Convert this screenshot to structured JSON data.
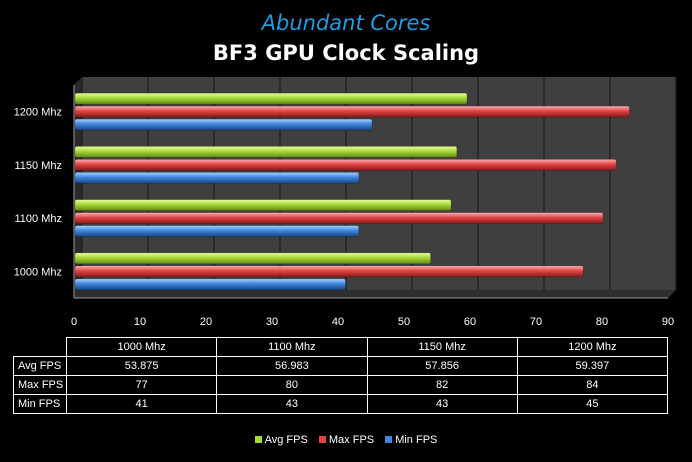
{
  "chart_data": {
    "type": "bar",
    "orientation": "horizontal",
    "subtitle": "Abundant Cores",
    "title": "BF3 GPU Clock Scaling",
    "categories": [
      "1000 Mhz",
      "1100 Mhz",
      "1150 Mhz",
      "1200 Mhz"
    ],
    "series": [
      {
        "name": "Avg FPS",
        "values": [
          53.875,
          56.983,
          57.856,
          59.397
        ],
        "color": "#b3e04a"
      },
      {
        "name": "Max FPS",
        "values": [
          77,
          80,
          82,
          84
        ],
        "color": "#e84a4a"
      },
      {
        "name": "Min FPS",
        "values": [
          41,
          43,
          43,
          45
        ],
        "color": "#4a90e0"
      }
    ],
    "xlim": [
      0,
      90
    ],
    "xticks": [
      0,
      10,
      20,
      30,
      40,
      50,
      60,
      70,
      80,
      90
    ],
    "grid": true,
    "legend_position": "bottom",
    "data_table": {
      "headers": [
        "1000 Mhz",
        "1100 Mhz",
        "1150 Mhz",
        "1200 Mhz"
      ],
      "rows": [
        {
          "label": "Avg FPS",
          "values": [
            "53.875",
            "56.983",
            "57.856",
            "59.397"
          ]
        },
        {
          "label": "Max FPS",
          "values": [
            "77",
            "80",
            "82",
            "84"
          ]
        },
        {
          "label": "Min FPS",
          "values": [
            "41",
            "43",
            "43",
            "45"
          ]
        }
      ]
    }
  }
}
